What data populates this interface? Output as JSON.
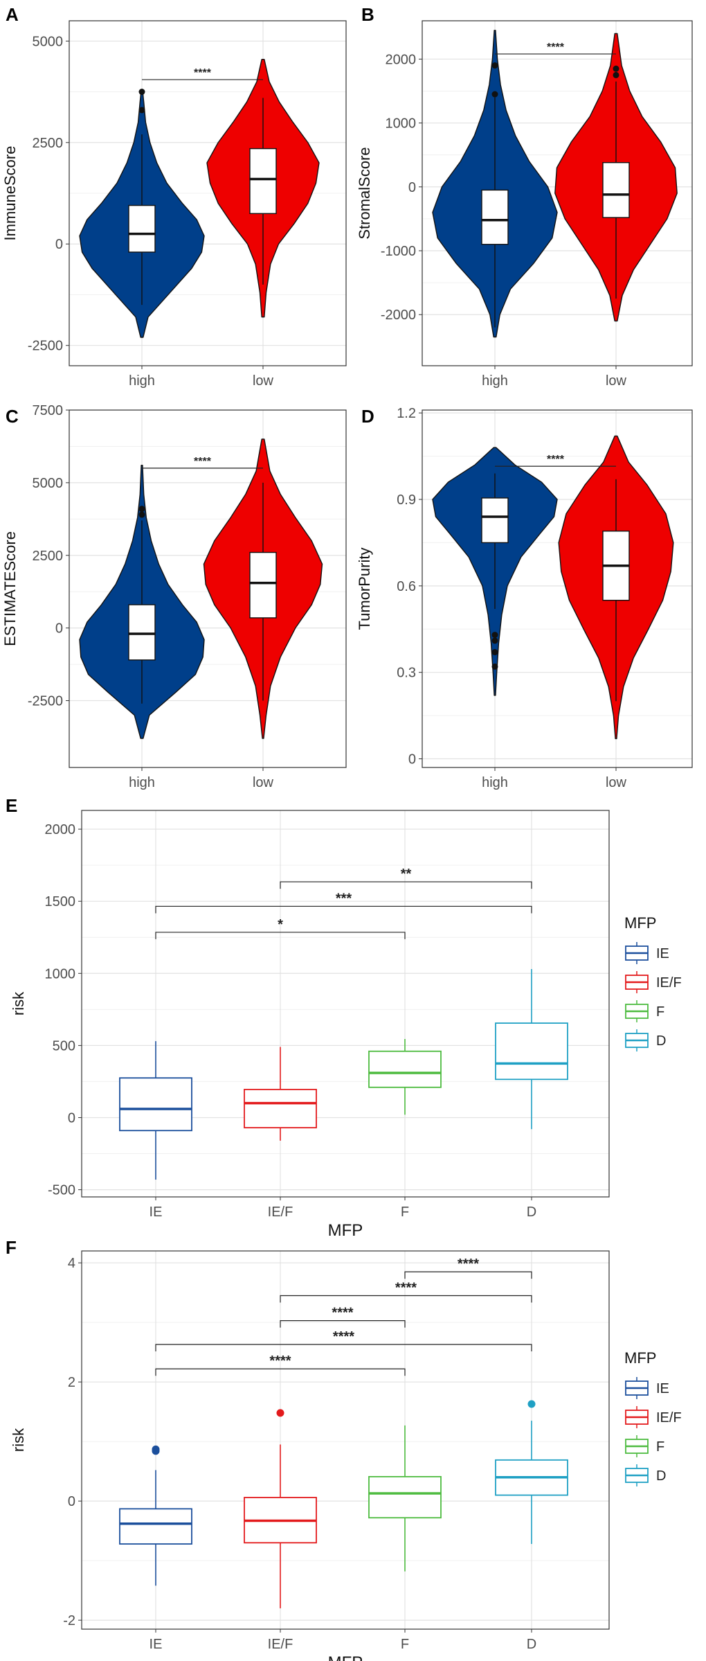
{
  "chart_data": [
    {
      "panel": "A",
      "type": "violin",
      "ylabel": "ImmuneScore",
      "categories": [
        "high",
        "low"
      ],
      "ylim": [
        -3000,
        5500
      ],
      "yticks": [
        -2500,
        0,
        2500,
        5000
      ],
      "series": [
        {
          "name": "high",
          "color": "#003f8a",
          "min": -2300,
          "q1": -200,
          "median": 250,
          "q3": 950,
          "whisker_low": -1500,
          "whisker_high": 2700,
          "max": 3800,
          "outliers": [
            3300,
            3750
          ],
          "density": [
            [
              -2300,
              0.02
            ],
            [
              -1800,
              0.1
            ],
            [
              -1200,
              0.45
            ],
            [
              -600,
              0.8
            ],
            [
              -200,
              0.96
            ],
            [
              200,
              1.0
            ],
            [
              600,
              0.88
            ],
            [
              1000,
              0.65
            ],
            [
              1500,
              0.4
            ],
            [
              2000,
              0.24
            ],
            [
              2500,
              0.13
            ],
            [
              3000,
              0.06
            ],
            [
              3500,
              0.03
            ],
            [
              3800,
              0.01
            ]
          ]
        },
        {
          "name": "low",
          "color": "#ee0000",
          "min": -1800,
          "q1": 750,
          "median": 1600,
          "q3": 2350,
          "whisker_low": -1000,
          "whisker_high": 3600,
          "max": 4550,
          "outliers": [],
          "density": [
            [
              -1800,
              0.02
            ],
            [
              -1200,
              0.05
            ],
            [
              -500,
              0.12
            ],
            [
              0,
              0.25
            ],
            [
              500,
              0.5
            ],
            [
              1000,
              0.72
            ],
            [
              1500,
              0.85
            ],
            [
              2000,
              0.9
            ],
            [
              2500,
              0.72
            ],
            [
              3000,
              0.48
            ],
            [
              3500,
              0.26
            ],
            [
              4000,
              0.1
            ],
            [
              4550,
              0.02
            ]
          ]
        }
      ],
      "significance": [
        {
          "from": "high",
          "to": "low",
          "label": "****",
          "y": 4050
        }
      ]
    },
    {
      "panel": "B",
      "type": "violin",
      "ylabel": "StromalScore",
      "categories": [
        "high",
        "low"
      ],
      "ylim": [
        -2800,
        2600
      ],
      "yticks": [
        -2000,
        -1000,
        0,
        1000,
        2000
      ],
      "series": [
        {
          "name": "high",
          "color": "#003f8a",
          "min": -2350,
          "q1": -900,
          "median": -520,
          "q3": -50,
          "whisker_low": -2200,
          "whisker_high": 1400,
          "max": 2450,
          "outliers": [
            1450,
            1900
          ],
          "density": [
            [
              -2350,
              0.02
            ],
            [
              -2000,
              0.08
            ],
            [
              -1600,
              0.25
            ],
            [
              -1200,
              0.62
            ],
            [
              -800,
              0.92
            ],
            [
              -400,
              1.0
            ],
            [
              0,
              0.85
            ],
            [
              400,
              0.55
            ],
            [
              800,
              0.33
            ],
            [
              1200,
              0.18
            ],
            [
              1600,
              0.09
            ],
            [
              2000,
              0.04
            ],
            [
              2450,
              0.01
            ]
          ]
        },
        {
          "name": "low",
          "color": "#ee0000",
          "min": -2100,
          "q1": -480,
          "median": -120,
          "q3": 380,
          "whisker_low": -1750,
          "whisker_high": 1650,
          "max": 2400,
          "outliers": [
            1750,
            1850
          ],
          "density": [
            [
              -2100,
              0.02
            ],
            [
              -1700,
              0.1
            ],
            [
              -1300,
              0.28
            ],
            [
              -900,
              0.55
            ],
            [
              -500,
              0.82
            ],
            [
              -100,
              0.98
            ],
            [
              300,
              0.95
            ],
            [
              700,
              0.72
            ],
            [
              1100,
              0.42
            ],
            [
              1500,
              0.22
            ],
            [
              1900,
              0.09
            ],
            [
              2400,
              0.02
            ]
          ]
        }
      ],
      "significance": [
        {
          "from": "high",
          "to": "low",
          "label": "****",
          "y": 2080
        }
      ]
    },
    {
      "panel": "C",
      "type": "violin",
      "ylabel": "ESTIMATEScore",
      "categories": [
        "high",
        "low"
      ],
      "ylim": [
        -4800,
        7500
      ],
      "yticks": [
        -2500,
        0,
        2500,
        5000,
        7500
      ],
      "series": [
        {
          "name": "high",
          "color": "#003f8a",
          "min": -3800,
          "q1": -1100,
          "median": -200,
          "q3": 800,
          "whisker_low": -2600,
          "whisker_high": 3700,
          "max": 5600,
          "outliers": [
            3900,
            4100
          ],
          "density": [
            [
              -3800,
              0.02
            ],
            [
              -3000,
              0.12
            ],
            [
              -2200,
              0.55
            ],
            [
              -1600,
              0.86
            ],
            [
              -1000,
              0.98
            ],
            [
              -400,
              1.0
            ],
            [
              200,
              0.88
            ],
            [
              800,
              0.65
            ],
            [
              1500,
              0.42
            ],
            [
              2200,
              0.27
            ],
            [
              3000,
              0.15
            ],
            [
              3800,
              0.07
            ],
            [
              4600,
              0.03
            ],
            [
              5600,
              0.01
            ]
          ]
        },
        {
          "name": "low",
          "color": "#ee0000",
          "min": -3800,
          "q1": 350,
          "median": 1550,
          "q3": 2600,
          "whisker_low": -2500,
          "whisker_high": 5000,
          "max": 6500,
          "outliers": [],
          "density": [
            [
              -3800,
              0.01
            ],
            [
              -3000,
              0.05
            ],
            [
              -2000,
              0.12
            ],
            [
              -1000,
              0.28
            ],
            [
              0,
              0.52
            ],
            [
              800,
              0.78
            ],
            [
              1500,
              0.92
            ],
            [
              2200,
              0.95
            ],
            [
              3000,
              0.78
            ],
            [
              3800,
              0.52
            ],
            [
              4600,
              0.28
            ],
            [
              5400,
              0.11
            ],
            [
              6500,
              0.02
            ]
          ]
        }
      ],
      "significance": [
        {
          "from": "high",
          "to": "low",
          "label": "****",
          "y": 5500
        }
      ]
    },
    {
      "panel": "D",
      "type": "violin",
      "ylabel": "TumorPurity",
      "categories": [
        "high",
        "low"
      ],
      "ylim": [
        -0.03,
        1.21
      ],
      "yticks": [
        0.0,
        0.3,
        0.6,
        0.9,
        1.2
      ],
      "series": [
        {
          "name": "high",
          "color": "#003f8a",
          "min": 0.22,
          "q1": 0.75,
          "median": 0.84,
          "q3": 0.905,
          "whisker_low": 0.52,
          "whisker_high": 0.99,
          "max": 1.08,
          "outliers": [
            0.32,
            0.37,
            0.41,
            0.43
          ],
          "density": [
            [
              0.22,
              0.01
            ],
            [
              0.3,
              0.03
            ],
            [
              0.4,
              0.06
            ],
            [
              0.5,
              0.11
            ],
            [
              0.6,
              0.2
            ],
            [
              0.7,
              0.42
            ],
            [
              0.78,
              0.72
            ],
            [
              0.84,
              0.95
            ],
            [
              0.9,
              1.0
            ],
            [
              0.96,
              0.75
            ],
            [
              1.02,
              0.32
            ],
            [
              1.08,
              0.02
            ]
          ]
        },
        {
          "name": "low",
          "color": "#ee0000",
          "min": 0.07,
          "q1": 0.55,
          "median": 0.67,
          "q3": 0.79,
          "whisker_low": 0.2,
          "whisker_high": 0.97,
          "max": 1.12,
          "outliers": [],
          "density": [
            [
              0.07,
              0.01
            ],
            [
              0.15,
              0.04
            ],
            [
              0.25,
              0.12
            ],
            [
              0.35,
              0.28
            ],
            [
              0.45,
              0.52
            ],
            [
              0.55,
              0.75
            ],
            [
              0.65,
              0.88
            ],
            [
              0.75,
              0.92
            ],
            [
              0.85,
              0.8
            ],
            [
              0.95,
              0.5
            ],
            [
              1.03,
              0.2
            ],
            [
              1.12,
              0.02
            ]
          ]
        }
      ],
      "significance": [
        {
          "from": "high",
          "to": "low",
          "label": "****",
          "y": 1.015
        }
      ]
    },
    {
      "panel": "E",
      "type": "box",
      "xlabel": "MFP",
      "ylabel": "risk",
      "categories": [
        "IE",
        "IE/F",
        "F",
        "D"
      ],
      "ylim": [
        -550,
        2130
      ],
      "yticks": [
        -500,
        0,
        500,
        1000,
        1500,
        2000
      ],
      "legend": {
        "title": "MFP",
        "entries": [
          "IE",
          "IE/F",
          "F",
          "D"
        ]
      },
      "series": [
        {
          "name": "IE",
          "color": "#1b4f9c",
          "q1": -90,
          "median": 60,
          "q3": 275,
          "whisker_low": -430,
          "whisker_high": 530,
          "outliers": []
        },
        {
          "name": "IE/F",
          "color": "#e31a1c",
          "q1": -70,
          "median": 100,
          "q3": 195,
          "whisker_low": -160,
          "whisker_high": 490,
          "outliers": []
        },
        {
          "name": "F",
          "color": "#4dbb3f",
          "q1": 210,
          "median": 310,
          "q3": 460,
          "whisker_low": 20,
          "whisker_high": 545,
          "outliers": []
        },
        {
          "name": "D",
          "color": "#1fa0c4",
          "q1": 265,
          "median": 375,
          "q3": 655,
          "whisker_low": -80,
          "whisker_high": 1030,
          "outliers": []
        }
      ],
      "significance": [
        {
          "from": "IE/F",
          "to": "D",
          "label": "**",
          "y": 1635
        },
        {
          "from": "IE",
          "to": "D",
          "label": "***",
          "y": 1465
        },
        {
          "from": "IE",
          "to": "F",
          "label": "*",
          "y": 1285
        }
      ]
    },
    {
      "panel": "F",
      "type": "box",
      "xlabel": "MFP",
      "ylabel": "risk",
      "categories": [
        "IE",
        "IE/F",
        "F",
        "D"
      ],
      "ylim": [
        -2.15,
        4.2
      ],
      "yticks": [
        -2,
        0,
        2,
        4
      ],
      "legend": {
        "title": "MFP",
        "entries": [
          "IE",
          "IE/F",
          "F",
          "D"
        ]
      },
      "series": [
        {
          "name": "IE",
          "color": "#1b4f9c",
          "q1": -0.72,
          "median": -0.38,
          "q3": -0.13,
          "whisker_low": -1.42,
          "whisker_high": 0.52,
          "outliers": [
            0.84,
            0.87
          ]
        },
        {
          "name": "IE/F",
          "color": "#e31a1c",
          "q1": -0.7,
          "median": -0.33,
          "q3": 0.06,
          "whisker_low": -1.8,
          "whisker_high": 0.95,
          "outliers": [
            1.48
          ]
        },
        {
          "name": "F",
          "color": "#4dbb3f",
          "q1": -0.28,
          "median": 0.13,
          "q3": 0.41,
          "whisker_low": -1.18,
          "whisker_high": 1.27,
          "outliers": []
        },
        {
          "name": "D",
          "color": "#1fa0c4",
          "q1": 0.1,
          "median": 0.4,
          "q3": 0.69,
          "whisker_low": -0.72,
          "whisker_high": 1.35,
          "outliers": [
            1.63
          ]
        }
      ],
      "significance": [
        {
          "from": "F",
          "to": "D",
          "label": "****",
          "y": 3.85
        },
        {
          "from": "IE/F",
          "to": "D",
          "label": "****",
          "y": 3.45
        },
        {
          "from": "IE/F",
          "to": "F",
          "label": "****",
          "y": 3.03
        },
        {
          "from": "IE",
          "to": "D",
          "label": "****",
          "y": 2.63
        },
        {
          "from": "IE",
          "to": "F",
          "label": "****",
          "y": 2.22
        }
      ]
    }
  ]
}
